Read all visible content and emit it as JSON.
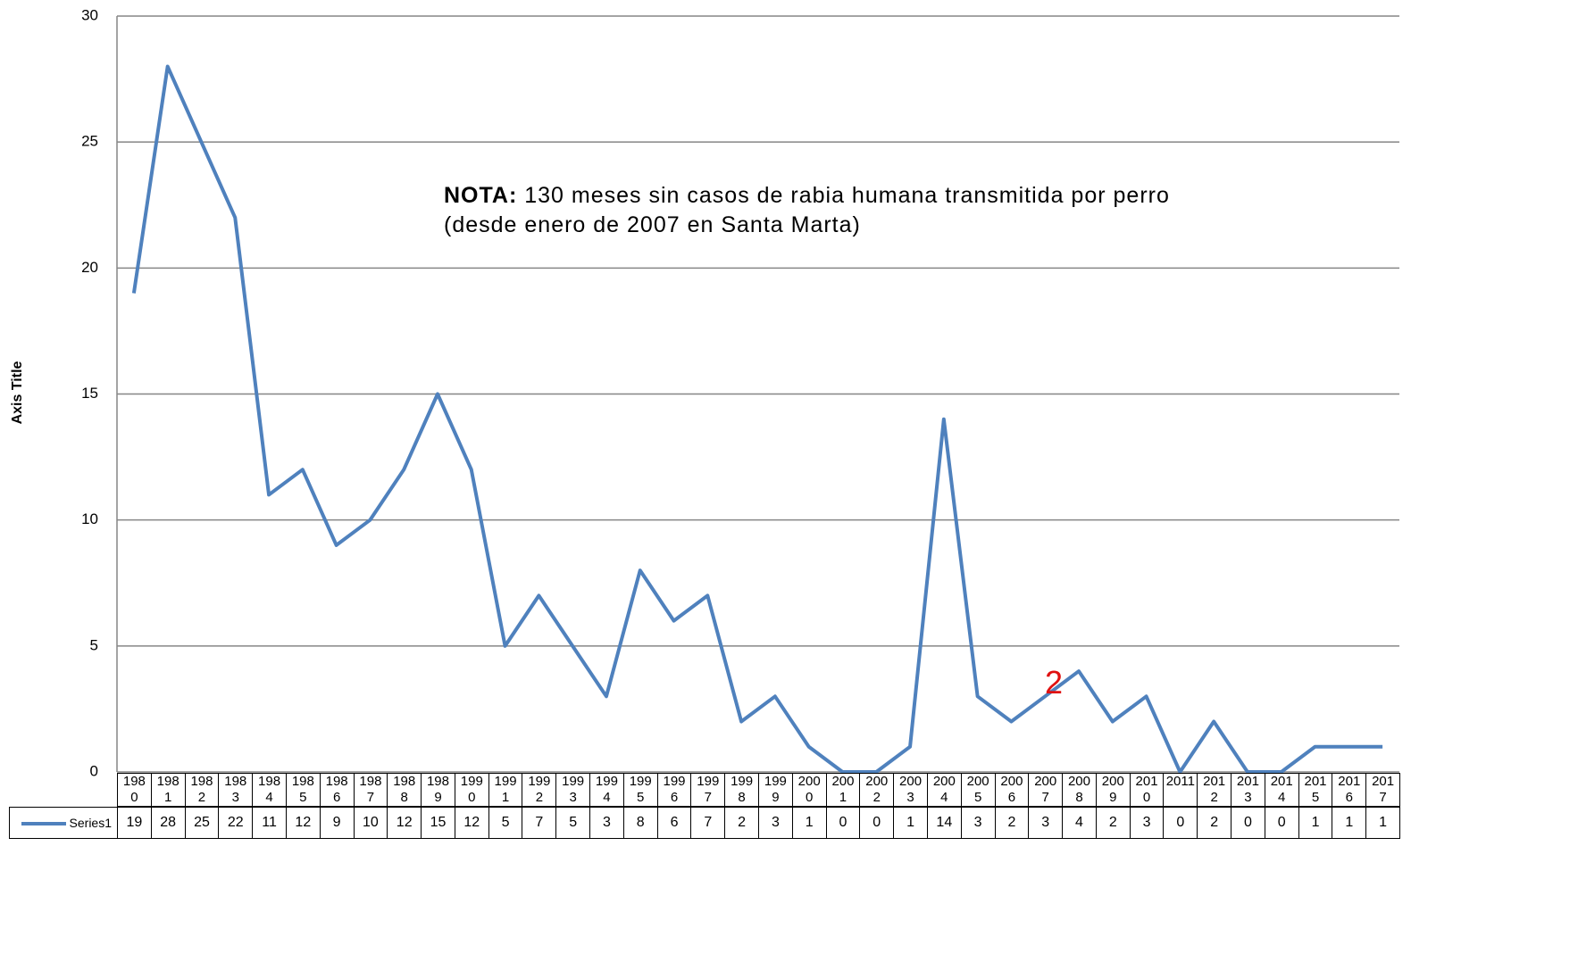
{
  "chart_data": {
    "type": "line",
    "y_axis_label": "Axis Title",
    "note_label": "NOTA:",
    "note_text": "130 meses sin casos de rabia humana transmitida por perro (desde enero de 2007 en Santa Marta)",
    "marker_annotation": "2",
    "categories": [
      "1980",
      "1981",
      "1982",
      "1983",
      "1984",
      "1985",
      "1986",
      "1987",
      "1988",
      "1989",
      "1990",
      "1991",
      "1992",
      "1993",
      "1994",
      "1995",
      "1996",
      "1997",
      "1998",
      "1999",
      "2000",
      "2001",
      "2002",
      "2003",
      "2004",
      "2005",
      "2006",
      "2007",
      "2008",
      "2009",
      "2010",
      "2011",
      "2012",
      "2013",
      "2014",
      "2015",
      "2016",
      "2017"
    ],
    "series": [
      {
        "name": "Series1",
        "color": "#4f81bd",
        "values": [
          19,
          28,
          25,
          22,
          11,
          12,
          9,
          10,
          12,
          15,
          12,
          5,
          7,
          5,
          3,
          8,
          6,
          7,
          2,
          3,
          1,
          0,
          0,
          1,
          14,
          3,
          2,
          3,
          4,
          2,
          3,
          0,
          2,
          0,
          0,
          1,
          1,
          1
        ]
      }
    ],
    "ylim": [
      0,
      30
    ],
    "yticks": [
      0,
      5,
      10,
      15,
      20,
      25,
      30
    ],
    "grid": true,
    "data_table": true
  }
}
